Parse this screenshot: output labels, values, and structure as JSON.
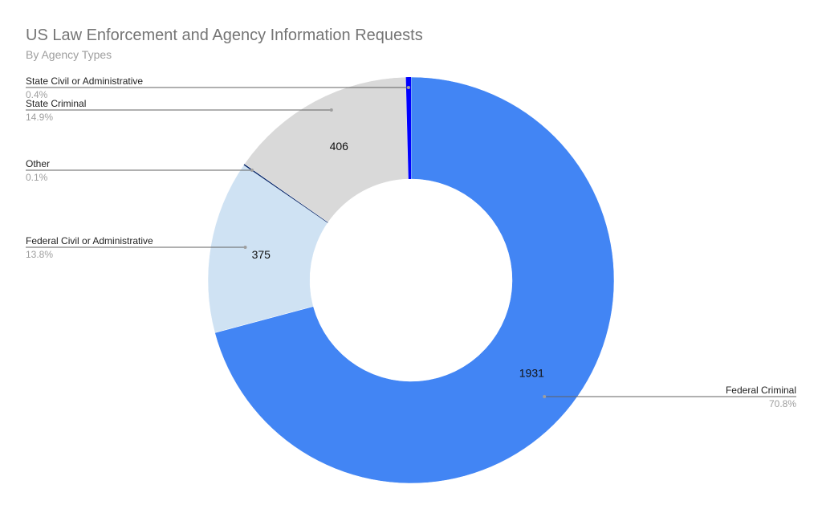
{
  "chart_data": {
    "type": "pie",
    "donut": true,
    "title": "US Law Enforcement and Agency Information Requests",
    "subtitle": "By Agency Types",
    "legend": "none",
    "slices": [
      {
        "name": "Federal Criminal",
        "value": 1931,
        "percent_label": "70.8%",
        "color": "#4285f4",
        "value_label": "1931",
        "label_side": "right"
      },
      {
        "name": "Federal Civil or Administrative",
        "value": 375,
        "percent_label": "13.8%",
        "color": "#cfe2f3",
        "value_label": "375",
        "label_side": "left"
      },
      {
        "name": "Other",
        "value": 3,
        "percent_label": "0.1%",
        "color": "#0b2a6b",
        "value_label": "",
        "label_side": "left"
      },
      {
        "name": "State Criminal",
        "value": 406,
        "percent_label": "14.9%",
        "color": "#d9d9d9",
        "value_label": "406",
        "label_side": "left"
      },
      {
        "name": "State Civil or Administrative",
        "value": 11,
        "percent_label": "0.4%",
        "color": "#0000ff",
        "value_label": "",
        "label_side": "left"
      }
    ]
  }
}
